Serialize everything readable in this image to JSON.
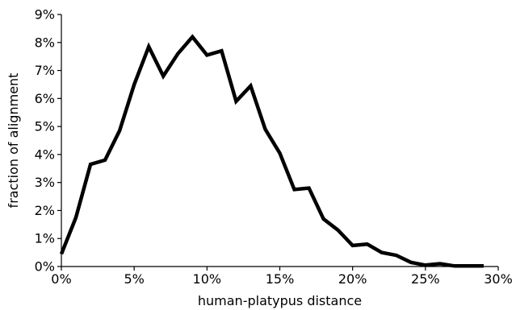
{
  "chart_data": {
    "type": "line",
    "title": "",
    "xlabel": "human-platypus distance",
    "ylabel": "fraction of alignment",
    "xlim": [
      0,
      30
    ],
    "ylim": [
      0,
      9
    ],
    "x_ticks": [
      0,
      5,
      10,
      15,
      20,
      25,
      30
    ],
    "y_ticks": [
      0,
      1,
      2,
      3,
      4,
      5,
      6,
      7,
      8,
      9
    ],
    "x_tick_labels": [
      "0%",
      "5%",
      "10%",
      "15%",
      "20%",
      "25%",
      "30%"
    ],
    "y_tick_labels": [
      "0%",
      "1%",
      "2%",
      "3%",
      "4%",
      "5%",
      "6%",
      "7%",
      "8%",
      "9%"
    ],
    "grid": false,
    "legend": "none",
    "series": [
      {
        "color": "#000000",
        "x": [
          0,
          1,
          2,
          3,
          4,
          5,
          6,
          7,
          8,
          9,
          10,
          11,
          12,
          13,
          14,
          15,
          16,
          17,
          18,
          19,
          20,
          21,
          22,
          23,
          24,
          25,
          26,
          27,
          28,
          29
        ],
        "values": [
          0.45,
          1.75,
          3.65,
          3.8,
          4.85,
          6.5,
          7.85,
          6.8,
          7.6,
          8.2,
          7.55,
          7.7,
          5.9,
          6.45,
          4.9,
          4.05,
          2.75,
          2.8,
          1.7,
          1.3,
          0.75,
          0.8,
          0.5,
          0.4,
          0.15,
          0.05,
          0.1,
          0.02,
          0.02,
          0.02
        ]
      }
    ]
  }
}
